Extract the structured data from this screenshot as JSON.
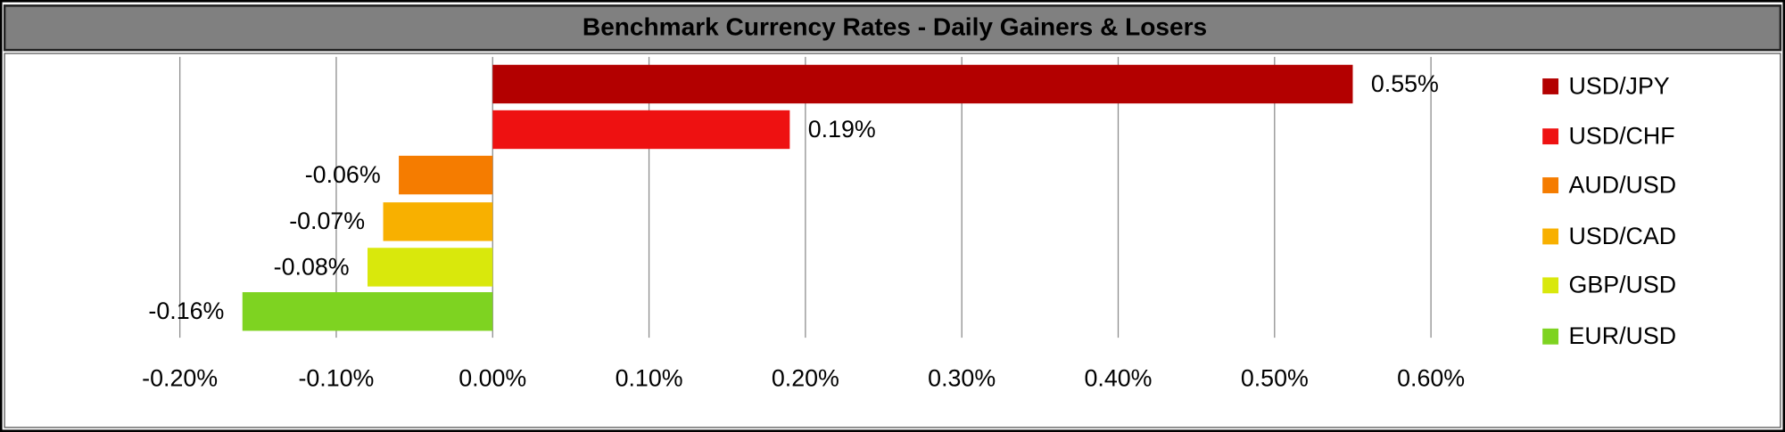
{
  "chart_data": {
    "type": "bar",
    "orientation": "horizontal",
    "title": "Benchmark Currency Rates - Daily Gainers & Losers",
    "categories": [
      "USD/JPY",
      "USD/CHF",
      "AUD/USD",
      "USD/CAD",
      "GBP/USD",
      "EUR/USD"
    ],
    "values": [
      0.55,
      0.19,
      -0.06,
      -0.07,
      -0.08,
      -0.16
    ],
    "value_labels": [
      "0.55%",
      "0.19%",
      "-0.06%",
      "-0.07%",
      "-0.08%",
      "-0.16%"
    ],
    "colors": [
      "#b30000",
      "#ee1111",
      "#f57c00",
      "#f8b000",
      "#d9e80c",
      "#7ed321"
    ],
    "xlim": [
      -0.2,
      0.6
    ],
    "xticks": [
      {
        "value": -0.2,
        "label": "-0.20%"
      },
      {
        "value": -0.1,
        "label": "-0.10%"
      },
      {
        "value": 0,
        "label": "0.00%"
      },
      {
        "value": 0.1,
        "label": "0.10%"
      },
      {
        "value": 0.2,
        "label": "0.20%"
      },
      {
        "value": 0.3,
        "label": "0.30%"
      },
      {
        "value": 0.4,
        "label": "0.40%"
      },
      {
        "value": 0.5,
        "label": "0.50%"
      },
      {
        "value": 0.6,
        "label": "0.60%"
      }
    ],
    "grid": true,
    "legend": "right"
  }
}
